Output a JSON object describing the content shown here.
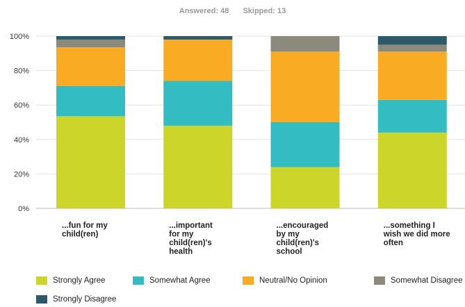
{
  "summary": {
    "answered_label": "Answered:",
    "answered_value": "48",
    "skipped_label": "Skipped:",
    "skipped_value": "13"
  },
  "chart_data": {
    "type": "bar",
    "stacked": true,
    "orientation": "vertical",
    "grid": true,
    "legend_position": "bottom",
    "ylim": [
      0,
      100
    ],
    "y_ticks": [
      "0%",
      "20%",
      "40%",
      "60%",
      "80%",
      "100%"
    ],
    "categories": [
      [
        "...fun for my",
        "child(ren)"
      ],
      [
        "...important",
        "for my",
        "child(ren)'s",
        "health"
      ],
      [
        "...encouraged",
        "by my",
        "child(ren)'s",
        "school"
      ],
      [
        "...something I",
        "wish we did more",
        "often"
      ]
    ],
    "series": [
      {
        "name": "Strongly Agree",
        "color": "#ccd52a",
        "values": [
          53.5,
          48,
          24,
          44
        ]
      },
      {
        "name": "Somewhat Agree",
        "color": "#33bcc1",
        "values": [
          17.5,
          26,
          26,
          19
        ]
      },
      {
        "name": "Neutral/No Opinion",
        "color": "#f8ab23",
        "values": [
          22.5,
          24,
          41,
          28
        ]
      },
      {
        "name": "Somewhat Disagree",
        "color": "#8b8a7c",
        "values": [
          4.5,
          0,
          9,
          4
        ]
      },
      {
        "name": "Strongly Disagree",
        "color": "#2c5a6b",
        "values": [
          2,
          2,
          0,
          5
        ]
      }
    ]
  }
}
